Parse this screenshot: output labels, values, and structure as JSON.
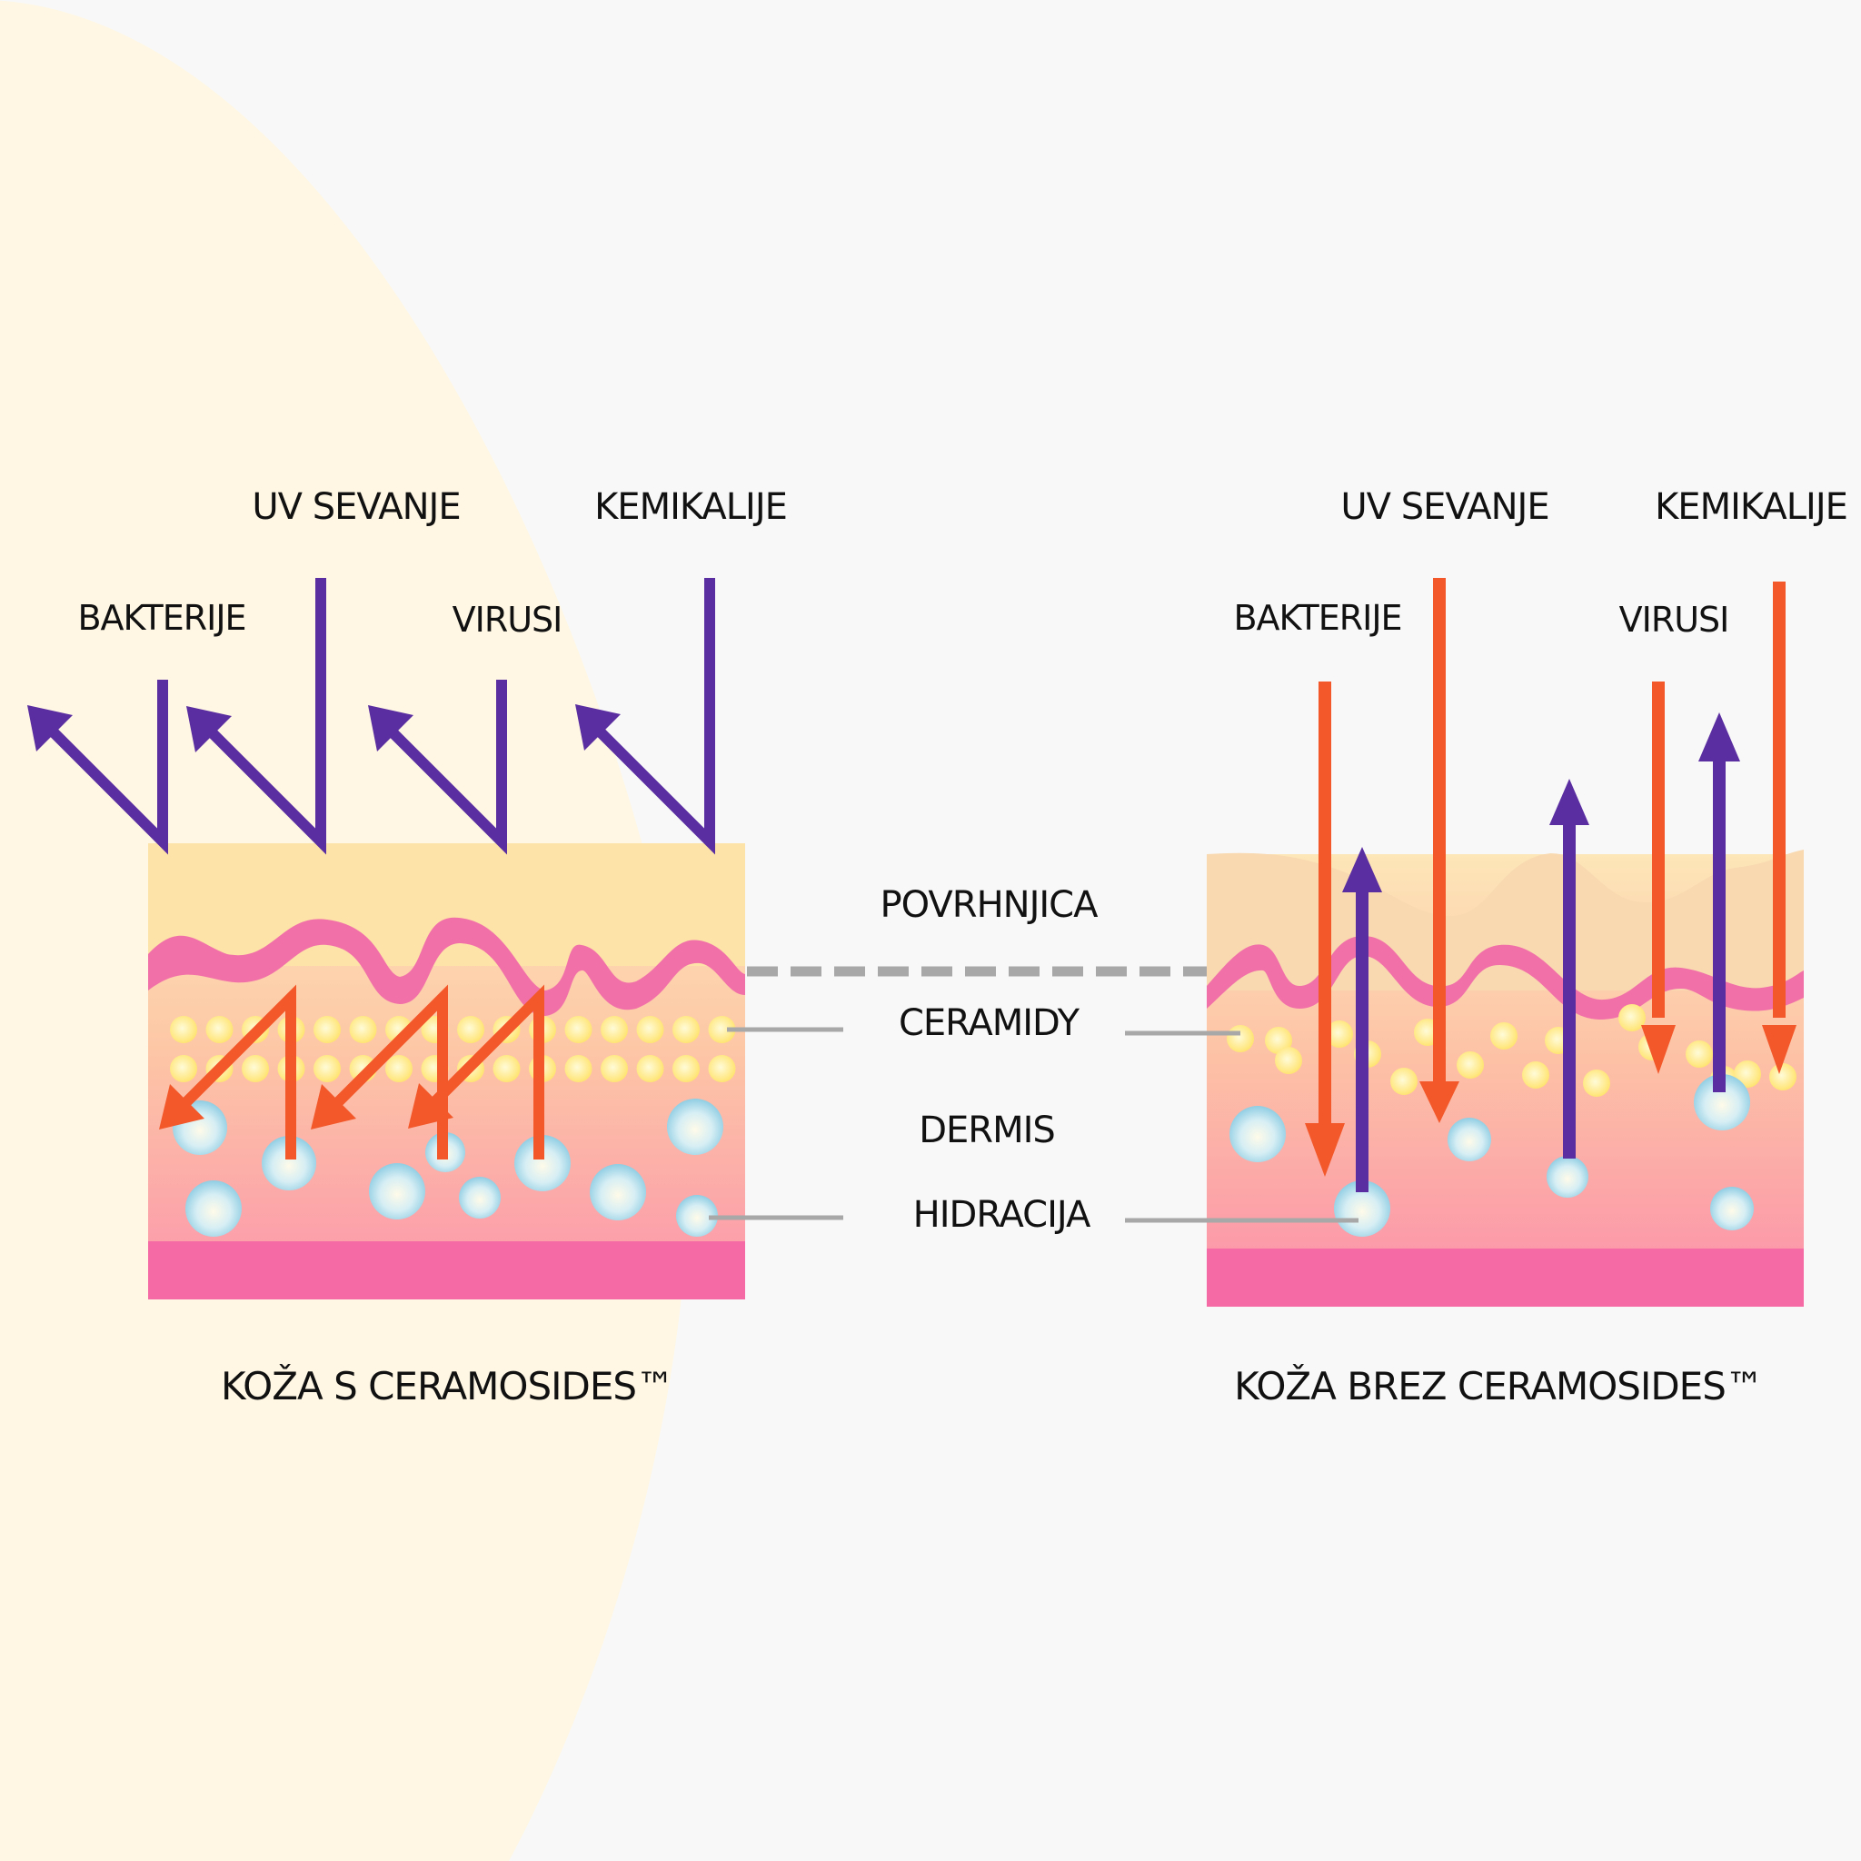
{
  "colors": {
    "background": "#f8f8f9",
    "cream_arc": "#fff7e3",
    "stratum_top": "#fde3a8",
    "stratum_top_damaged": "#f8d9b0",
    "epidermis_wave": "#f170a8",
    "base_layer": "#f56aa4",
    "ceramide_dot": "#ffe97a",
    "hydration_bubble": "#aee0f0",
    "arrow_purple": "#5a2da0",
    "arrow_orange": "#f2582a",
    "connector": "#a8a8a8"
  },
  "left_panel": {
    "threat_labels": {
      "uv": "UV SEVANJE",
      "chemicals": "KEMIKALIJE",
      "bacteria": "BAKTERIJE",
      "viruses": "VIRUSI"
    },
    "caption": "KOŽA S CERAMOSIDES™"
  },
  "right_panel": {
    "threat_labels": {
      "uv": "UV SEVANJE",
      "chemicals": "KEMIKALIJE",
      "bacteria": "BAKTERIJE",
      "viruses": "VIRUSI"
    },
    "caption": "KOŽA BREZ CERAMOSIDES™"
  },
  "layer_labels": {
    "surface": "POVRHNJICA",
    "ceramides": "CERAMIDY",
    "dermis": "DERMIS",
    "hydration": "HIDRACIJA"
  },
  "icons": {
    "arrow": "arrow-icon",
    "ceramide": "ceramide-dot-icon",
    "bubble": "hydration-bubble-icon"
  }
}
